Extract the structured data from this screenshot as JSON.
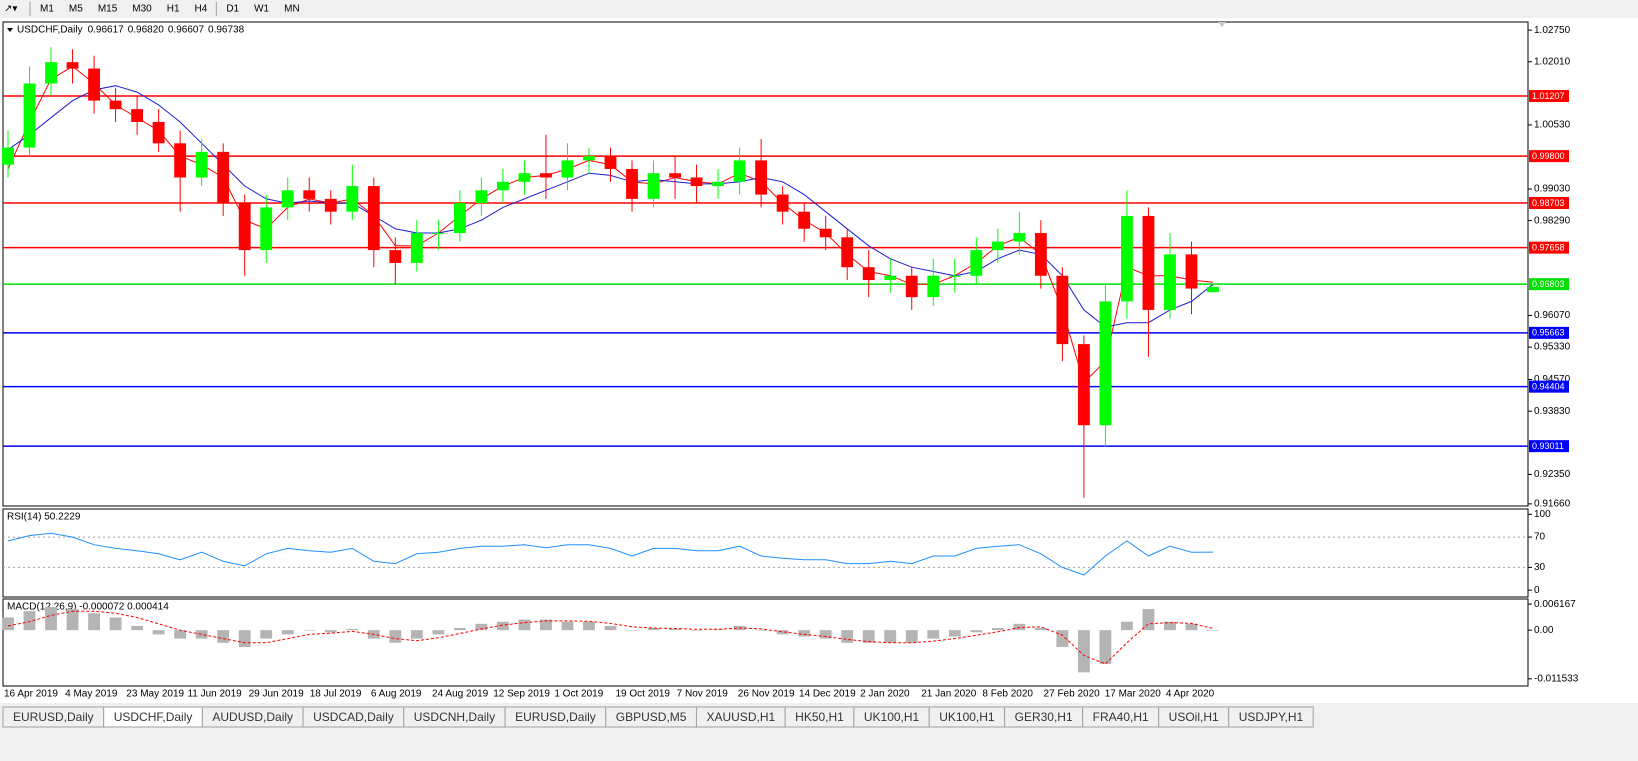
{
  "toolbar": {
    "timeframes": [
      "M1",
      "M5",
      "M15",
      "M30",
      "H1",
      "H4",
      "D1",
      "W1",
      "MN"
    ]
  },
  "chart_data": [
    {
      "type": "candlestick",
      "title": "USDCHF,Daily",
      "quote": [
        {
          "value": 0.96617,
          "label": "0.96617"
        },
        {
          "value": 0.9682,
          "label": "0.96820"
        },
        {
          "value": 0.96607,
          "label": "0.96607"
        },
        {
          "value": 0.96738,
          "label": "0.96738"
        }
      ],
      "up_color": "#00ff00",
      "down_color": "#ff0000",
      "open": [
        0.996,
        1.0,
        1.015,
        1.02,
        1.0185,
        1.011,
        1.009,
        1.006,
        1.001,
        0.993,
        0.999,
        0.987,
        0.976,
        0.986,
        0.99,
        0.988,
        0.985,
        0.991,
        0.976,
        0.973,
        0.98,
        0.98,
        0.987,
        0.99,
        0.992,
        0.994,
        0.993,
        0.997,
        0.998,
        0.995,
        0.988,
        0.994,
        0.993,
        0.991,
        0.992,
        0.997,
        0.989,
        0.985,
        0.981,
        0.979,
        0.972,
        0.969,
        0.97,
        0.965,
        0.97,
        0.97,
        0.976,
        0.978,
        0.98,
        0.97,
        0.954,
        0.935,
        0.964,
        0.984,
        0.962,
        0.975,
        0.96617
      ],
      "high": [
        1.004,
        1.019,
        1.0235,
        1.023,
        1.0215,
        1.014,
        1.012,
        1.009,
        1.004,
        1.002,
        1.001,
        0.989,
        0.989,
        0.993,
        0.993,
        0.99,
        0.996,
        0.993,
        0.979,
        0.983,
        0.983,
        0.99,
        0.993,
        0.995,
        0.997,
        1.003,
        1.001,
        1.0,
        1.0,
        0.997,
        0.997,
        0.998,
        0.996,
        0.995,
        1.0,
        1.002,
        0.991,
        0.987,
        0.984,
        0.981,
        0.976,
        0.974,
        0.972,
        0.974,
        0.974,
        0.979,
        0.981,
        0.985,
        0.983,
        0.972,
        0.956,
        0.968,
        0.99,
        0.986,
        0.98,
        0.978,
        0.9682
      ],
      "low": [
        0.993,
        0.998,
        1.012,
        1.015,
        1.008,
        1.006,
        1.003,
        0.999,
        0.985,
        0.991,
        0.984,
        0.97,
        0.973,
        0.983,
        0.985,
        0.982,
        0.983,
        0.972,
        0.968,
        0.971,
        0.976,
        0.978,
        0.984,
        0.987,
        0.989,
        0.988,
        0.99,
        0.994,
        0.992,
        0.985,
        0.986,
        0.988,
        0.987,
        0.988,
        0.989,
        0.986,
        0.982,
        0.978,
        0.976,
        0.969,
        0.965,
        0.966,
        0.962,
        0.963,
        0.966,
        0.968,
        0.973,
        0.975,
        0.967,
        0.95,
        0.918,
        0.93,
        0.96,
        0.951,
        0.96,
        0.961,
        0.96607
      ],
      "close": [
        1.0,
        1.015,
        1.02,
        1.0185,
        1.011,
        1.009,
        1.006,
        1.001,
        0.993,
        0.999,
        0.987,
        0.976,
        0.986,
        0.99,
        0.988,
        0.985,
        0.991,
        0.976,
        0.973,
        0.98,
        0.98,
        0.987,
        0.99,
        0.992,
        0.994,
        0.993,
        0.997,
        0.998,
        0.995,
        0.988,
        0.994,
        0.993,
        0.991,
        0.992,
        0.997,
        0.989,
        0.985,
        0.981,
        0.979,
        0.972,
        0.969,
        0.97,
        0.965,
        0.97,
        0.97,
        0.976,
        0.978,
        0.98,
        0.97,
        0.954,
        0.935,
        0.964,
        0.984,
        0.962,
        0.975,
        0.967,
        0.96738
      ],
      "series": [
        {
          "color": "#ff0000",
          "values": [
            0.995,
            1.006,
            1.016,
            1.019,
            1.015,
            1.01,
            1.007,
            1.004,
            0.998,
            0.996,
            0.993,
            0.983,
            0.981,
            0.986,
            0.988,
            0.987,
            0.988,
            0.984,
            0.977,
            0.977,
            0.98,
            0.984,
            0.988,
            0.991,
            0.993,
            0.9935,
            0.995,
            0.997,
            0.996,
            0.992,
            0.9915,
            0.993,
            0.992,
            0.9915,
            0.994,
            0.992,
            0.987,
            0.983,
            0.98,
            0.975,
            0.971,
            0.97,
            0.968,
            0.968,
            0.97,
            0.973,
            0.977,
            0.979,
            0.975,
            0.962,
            0.945,
            0.95,
            0.972,
            0.97,
            0.97,
            0.969,
            0.9685
          ]
        },
        {
          "color": "#1c1cd8",
          "values": [
            0.9995,
            1.003,
            1.007,
            1.011,
            1.0135,
            1.0145,
            1.013,
            1.01,
            1.006,
            1.001,
            0.996,
            0.991,
            0.988,
            0.987,
            0.9875,
            0.987,
            0.987,
            0.984,
            0.981,
            0.98,
            0.98,
            0.981,
            0.983,
            0.986,
            0.988,
            0.99,
            0.992,
            0.994,
            0.9935,
            0.992,
            0.9925,
            0.992,
            0.9915,
            0.9915,
            0.992,
            0.993,
            0.992,
            0.989,
            0.985,
            0.981,
            0.977,
            0.974,
            0.972,
            0.971,
            0.97,
            0.971,
            0.974,
            0.976,
            0.975,
            0.97,
            0.962,
            0.958,
            0.959,
            0.959,
            0.962,
            0.964,
            0.968
          ]
        }
      ],
      "levels": [
        {
          "value": 1.01207,
          "label": "1.01207",
          "color": "#ff0000"
        },
        {
          "value": 0.998,
          "label": "0.99800",
          "color": "#ff0000"
        },
        {
          "value": 0.98703,
          "label": "0.98703",
          "color": "#ff0000"
        },
        {
          "value": 0.97658,
          "label": "0.97658",
          "color": "#ff0000"
        },
        {
          "value": 0.96803,
          "label": "0.96803",
          "color": "#00e000"
        },
        {
          "value": 0.95663,
          "label": "0.95663",
          "color": "#0000ff"
        },
        {
          "value": 0.94404,
          "label": "0.94404",
          "color": "#0000ff"
        },
        {
          "value": 0.93011,
          "label": "0.93011",
          "color": "#0000ff"
        }
      ],
      "ylim": [
        0.9161,
        1.0294
      ],
      "yticks": [
        {
          "value": 1.0275,
          "label": "1.02750"
        },
        {
          "value": 1.0201,
          "label": "1.02010"
        },
        {
          "value": 1.0053,
          "label": "1.00530"
        },
        {
          "value": 0.9903,
          "label": "0.99030"
        },
        {
          "value": 0.9829,
          "label": "0.98290"
        },
        {
          "value": 0.9607,
          "label": "0.96070"
        },
        {
          "value": 0.9533,
          "label": "0.95330"
        },
        {
          "value": 0.9457,
          "label": "0.94570"
        },
        {
          "value": 0.9383,
          "label": "0.93830"
        },
        {
          "value": 0.9235,
          "label": "0.92350"
        },
        {
          "value": 0.9166,
          "label": "0.91660"
        }
      ],
      "xtick_labels": [
        "16 Apr 2019",
        "4 May 2019",
        "23 May 2019",
        "11 Jun 2019",
        "29 Jun 2019",
        "18 Jul 2019",
        "6 Aug 2019",
        "24 Aug 2019",
        "12 Sep 2019",
        "1 Oct 2019",
        "19 Oct 2019",
        "7 Nov 2019",
        "26 Nov 2019",
        "14 Dec 2019",
        "2 Jan 2020",
        "21 Jan 2020",
        "8 Feb 2020",
        "27 Feb 2020",
        "17 Mar 2020",
        "4 Apr 2020"
      ]
    },
    {
      "type": "line",
      "title": "RSI(14) 50.2229",
      "color": "#1e90ff",
      "values": [
        65,
        72,
        75,
        70,
        60,
        55,
        52,
        48,
        40,
        50,
        38,
        32,
        48,
        55,
        52,
        50,
        55,
        38,
        35,
        48,
        50,
        55,
        58,
        58,
        60,
        56,
        60,
        60,
        55,
        45,
        55,
        55,
        52,
        52,
        58,
        45,
        42,
        40,
        40,
        35,
        35,
        38,
        35,
        45,
        45,
        55,
        58,
        60,
        48,
        30,
        20,
        45,
        65,
        45,
        58,
        50,
        50.2229
      ],
      "levels": [
        70,
        30
      ],
      "ylim": [
        -9,
        107
      ],
      "yticks": [
        100,
        70,
        30,
        0
      ]
    },
    {
      "type": "macd",
      "title": "MACD(12,26,9) -0.000072 0.000414",
      "color": "#b4b4b4",
      "signal_color": "#ff0000",
      "values": [
        0.003,
        0.0045,
        0.0055,
        0.005,
        0.004,
        0.003,
        0.001,
        -0.001,
        -0.002,
        -0.002,
        -0.003,
        -0.004,
        -0.002,
        -0.001,
        0,
        -0.0005,
        0.0003,
        -0.002,
        -0.003,
        -0.002,
        -0.001,
        0.0005,
        0.0015,
        0.002,
        0.0025,
        0.0025,
        0.002,
        0.002,
        0.001,
        0,
        0.0005,
        0.0003,
        0,
        0.0002,
        0.001,
        0,
        -0.001,
        -0.0015,
        -0.002,
        -0.003,
        -0.003,
        -0.003,
        -0.003,
        -0.002,
        -0.0015,
        -0.0005,
        0.0005,
        0.0015,
        0.0005,
        -0.004,
        -0.01,
        -0.008,
        0.002,
        0.005,
        0.002,
        0.0015,
        -7.2e-05
      ],
      "signal": [
        0.001,
        0.002,
        0.0035,
        0.0045,
        0.0045,
        0.004,
        0.003,
        0.0015,
        0,
        -0.001,
        -0.002,
        -0.003,
        -0.003,
        -0.002,
        -0.001,
        -0.0007,
        -0.0003,
        -0.001,
        -0.002,
        -0.0025,
        -0.0018,
        -0.0008,
        0.0003,
        0.0012,
        0.0018,
        0.0022,
        0.0022,
        0.0021,
        0.0016,
        0.0008,
        0.0005,
        0.0004,
        0.0002,
        0.0002,
        0.0005,
        0.0003,
        -0.0004,
        -0.001,
        -0.0015,
        -0.0022,
        -0.0027,
        -0.003,
        -0.003,
        -0.0026,
        -0.002,
        -0.0012,
        -0.0004,
        0.0006,
        0.0008,
        -0.0012,
        -0.006,
        -0.008,
        -0.003,
        0.0015,
        0.0018,
        0.0016,
        0.000414
      ],
      "ylim": [
        -0.01323,
        0.00738
      ],
      "yticks": [
        0.006167,
        {
          "value": 0,
          "label": "0.00"
        },
        -0.011533
      ]
    }
  ],
  "tabs": [
    "EURUSD,Daily",
    "USDCHF,Daily",
    "AUDUSD,Daily",
    "USDCAD,Daily",
    "USDCNH,Daily",
    "EURUSD,Daily",
    "GBPUSD,M5",
    "XAUUSD,H1",
    "HK50,H1",
    "UK100,H1",
    "UK100,H1",
    "GER30,H1",
    "FRA40,H1",
    "USOil,H1",
    "USDJPY,H1"
  ],
  "active_tab": 1
}
